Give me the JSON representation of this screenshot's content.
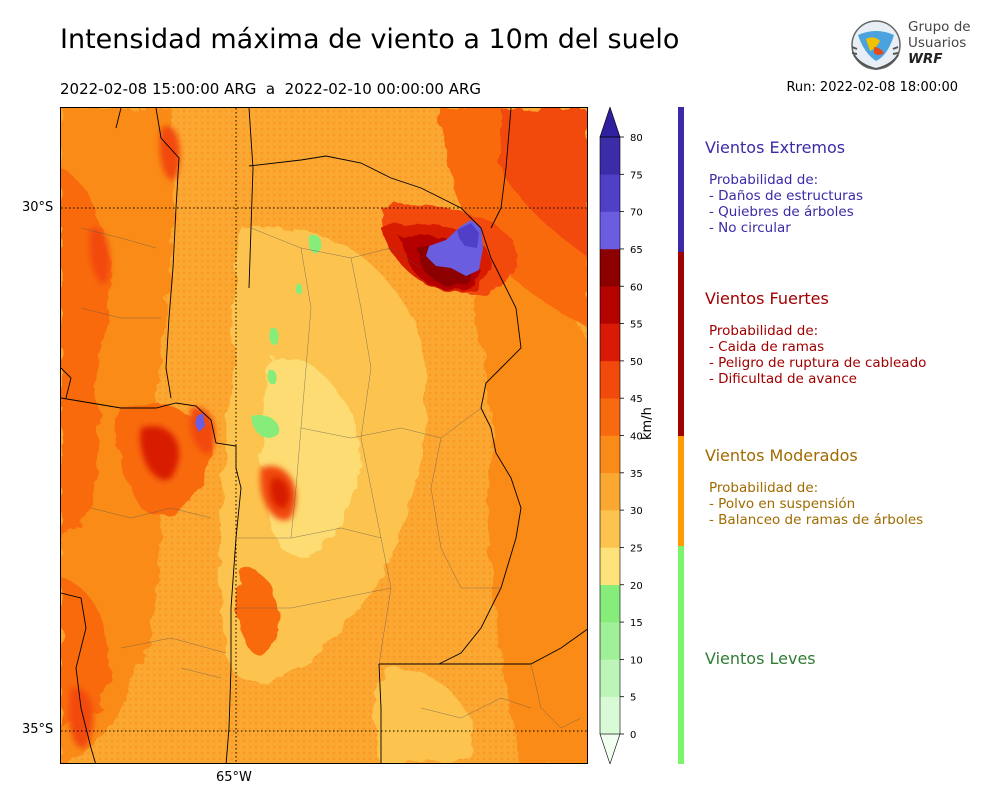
{
  "title": "Intensidad máxima de viento a 10m del suelo",
  "subtitle": "2022-02-08 15:00:00 ARG  a  2022-02-10 00:00:00 ARG",
  "run": "Run: 2022-02-08 18:00:00",
  "logo": {
    "line1": "Grupo de",
    "line2": "Usuarios",
    "line3": "WRF"
  },
  "map": {
    "lat_labels": [
      "30°S",
      "35°S"
    ],
    "lon_labels": [
      "65°W"
    ]
  },
  "colorbar": {
    "unit": "km/h",
    "ticks": [
      "0",
      "5",
      "10",
      "15",
      "20",
      "25",
      "30",
      "35",
      "40",
      "45",
      "50",
      "55",
      "60",
      "65",
      "70",
      "75",
      "80"
    ],
    "colors": [
      "#f0fff0",
      "#d8fad6",
      "#bdf5b8",
      "#9ff096",
      "#86ec7a",
      "#fde27c",
      "#fcc44f",
      "#fba833",
      "#fa8b18",
      "#f96a10",
      "#f24a0c",
      "#d81a06",
      "#b40400",
      "#8c0000",
      "#6a5de0",
      "#5040c8",
      "#3c2ca8",
      "#3020a0"
    ]
  },
  "categories": [
    {
      "name": "Vientos Extremos",
      "color": "#3a2aa8",
      "intro": "Probabilidad de:",
      "items": [
        "- Daños de estructuras",
        "- Quiebres de árboles",
        "- No circular"
      ]
    },
    {
      "name": "Vientos Fuertes",
      "color": "#a00000",
      "intro": "Probabilidad de:",
      "items": [
        "- Caida de ramas",
        "- Peligro de ruptura de cableado",
        "- Dificultad de avance"
      ]
    },
    {
      "name": "Vientos Moderados",
      "color": "#a06a00",
      "bar_color": "#ff9b00",
      "intro": "Probabilidad de:",
      "items": [
        "- Polvo en suspensión",
        "- Balanceo de ramas de árboles"
      ]
    },
    {
      "name": "Vientos Leves",
      "color": "#2e7d32",
      "bar_color": "#7cf56c",
      "intro": "",
      "items": []
    }
  ]
}
